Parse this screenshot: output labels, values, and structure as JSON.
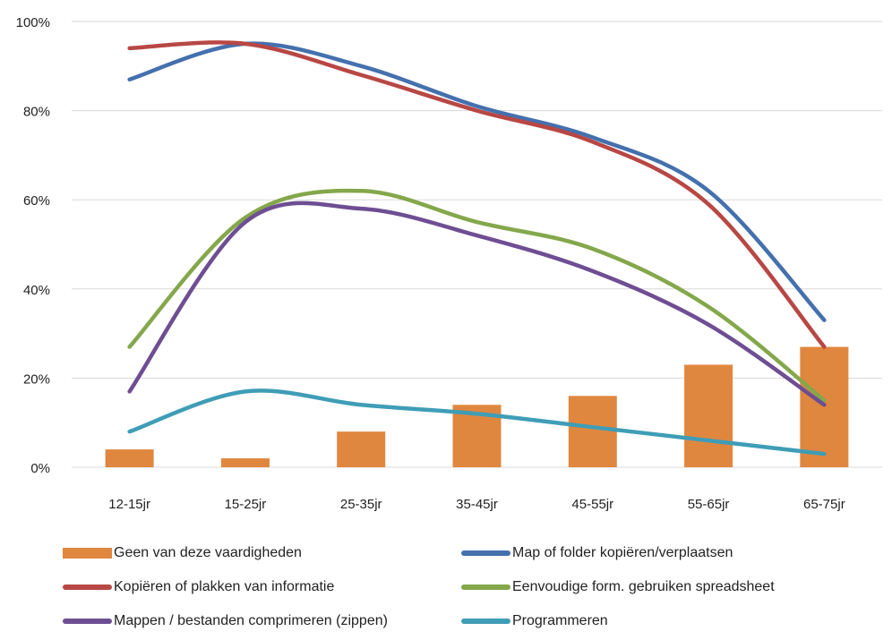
{
  "chart_data": {
    "type": "bar+line",
    "categories": [
      "12-15jr",
      "15-25jr",
      "25-35jr",
      "35-45jr",
      "45-55jr",
      "55-65jr",
      "65-75jr"
    ],
    "ylim": [
      0,
      100
    ],
    "yticks": [
      "0%",
      "20%",
      "40%",
      "60%",
      "80%",
      "100%"
    ],
    "ytick_values": [
      0,
      20,
      40,
      60,
      80,
      100
    ],
    "grid": true,
    "legend_position": "bottom",
    "series": [
      {
        "name": "Geen van deze vaardigheden",
        "kind": "bar",
        "color": "#E0873F",
        "values": [
          4,
          2,
          8,
          14,
          16,
          23,
          27
        ]
      },
      {
        "name": "Map of folder kopiëren/verplaatsen",
        "kind": "line",
        "color": "#4470AE",
        "values": [
          87,
          95,
          90,
          81,
          74,
          62,
          33
        ]
      },
      {
        "name": "Kopiëren of plakken van informatie",
        "kind": "line",
        "color": "#B84744",
        "values": [
          94,
          95,
          88,
          80,
          73,
          59,
          27
        ]
      },
      {
        "name": "Eenvoudige form. gebruiken spreadsheet",
        "kind": "line",
        "color": "#84A74B",
        "values": [
          27,
          56,
          62,
          55,
          49,
          36,
          15
        ]
      },
      {
        "name": "Mappen / bestanden comprimeren (zippen)",
        "kind": "line",
        "color": "#6E4E93",
        "values": [
          17,
          55,
          58,
          52,
          44,
          32,
          14
        ]
      },
      {
        "name": "Programmeren",
        "kind": "line",
        "color": "#3F9DB6",
        "values": [
          8,
          17,
          14,
          12,
          9,
          6,
          3
        ]
      }
    ]
  }
}
